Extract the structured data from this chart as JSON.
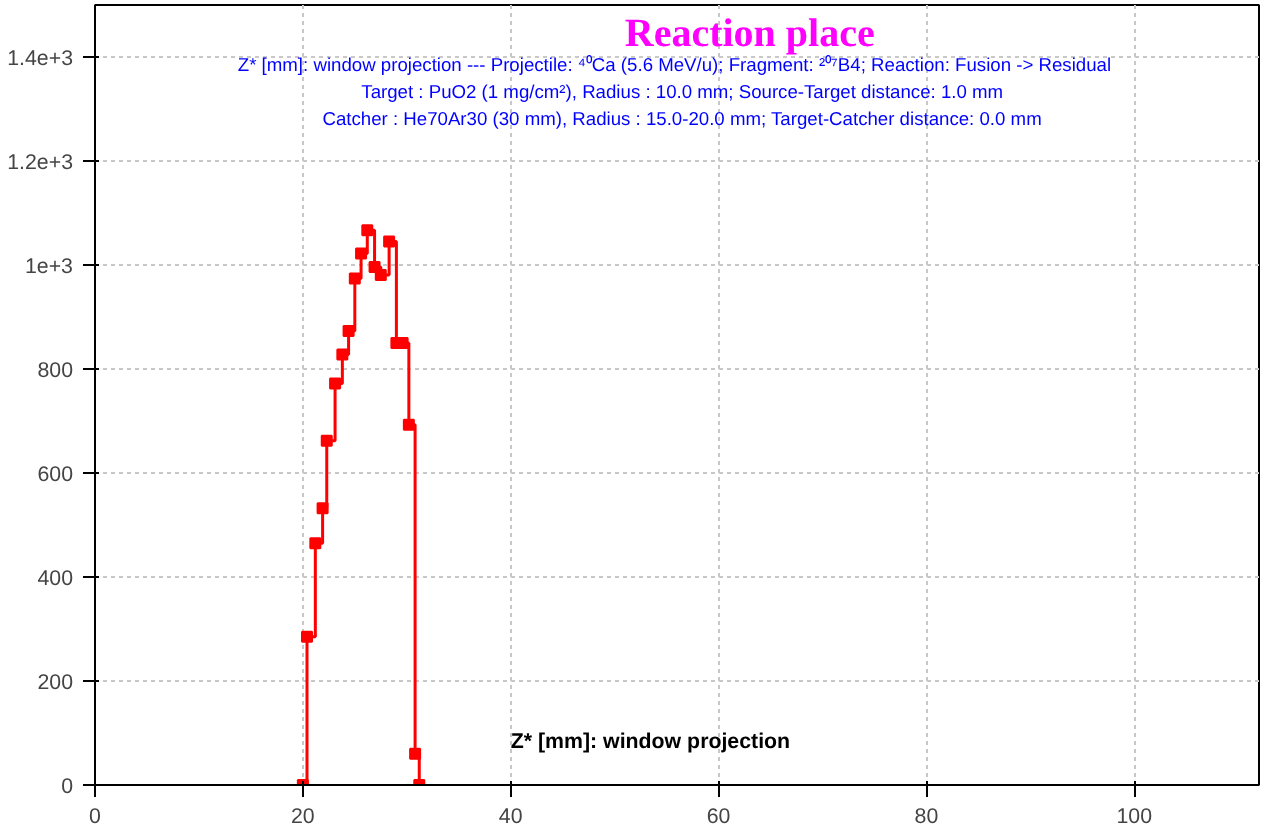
{
  "chart_data": {
    "type": "step",
    "title": "Reaction place",
    "subtitle": "Z* [mm]:  window projection --- Projectile: ⁴⁰Ca (5.6 MeV/u);   Fragment: ²⁰⁷B4;   Reaction: Fusion -> Residual\nTarget : PuO2 (1 mg/cm²),  Radius : 10.0 mm;  Source-Target distance: 1.0 mm\nCatcher : He70Ar30 (30 mm),  Radius : 15.0-20.0 mm;  Target-Catcher distance: 0.0 mm",
    "xlabel": "Z* [mm]:  window projection",
    "x": [
      20.0,
      20.4,
      21.2,
      21.9,
      22.3,
      23.1,
      23.8,
      24.4,
      25.0,
      25.6,
      26.2,
      26.9,
      27.5,
      28.3,
      29.0,
      29.6,
      30.2,
      30.8,
      31.2
    ],
    "series": [
      {
        "color": "#ff0000",
        "values": [
          0,
          285,
          465,
          532,
          662,
          772,
          828,
          873,
          974,
          1022,
          1067,
          996,
          981,
          1045,
          850,
          850,
          693,
          60,
          0
        ]
      }
    ],
    "xlim": [
      0,
      112
    ],
    "ylim": [
      0,
      1500
    ],
    "xticks": [
      0,
      20,
      40,
      60,
      80,
      100
    ],
    "yticks": [
      0,
      200,
      400,
      600,
      800,
      {
        "value": 1000,
        "label": "1e+3"
      },
      {
        "value": 1200,
        "label": "1.2e+3"
      },
      {
        "value": 1400,
        "label": "1.4e+3"
      }
    ],
    "grid": true,
    "marker": "square",
    "line_style": "solid"
  }
}
